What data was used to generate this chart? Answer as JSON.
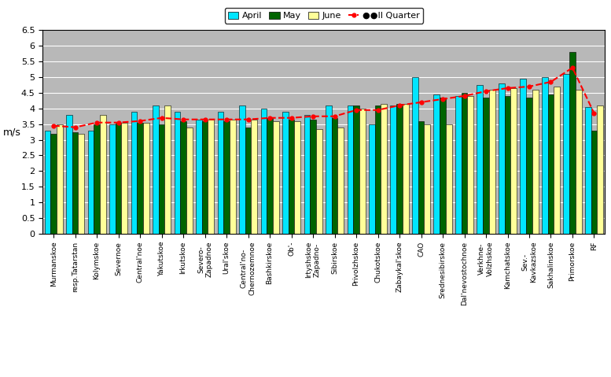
{
  "categories": [
    "Murmanskoe",
    "resp.Tatarstan",
    "Kolymskoe",
    "Severnoe",
    "Central'noe",
    "Yakutskoe",
    "Irkutskoe",
    "Severo-\nZapadnoe",
    "Ural'skoe",
    "Central'no-\nChernozemnoe",
    "Bashkirskoe",
    "Ob'-",
    "Irtyshskoe\nZapadno-",
    "Sibirskoe",
    "Privolzhskoe",
    "Chukotskoe",
    "Zabaykal'skoe",
    "CAO",
    "Srednesibirskoe",
    "Dal'nevostochnoe",
    "Verkhnе-\nVolzhskoe",
    "Kamchatskoe",
    "Sev.-\nKavkazskoe",
    "Sakhalinskoe",
    "Primorskoe",
    "RF"
  ],
  "april": [
    3.3,
    3.8,
    3.3,
    3.5,
    3.9,
    4.1,
    3.9,
    3.65,
    3.9,
    4.1,
    4.0,
    3.9,
    3.8,
    4.1,
    4.1,
    3.5,
    4.1,
    5.0,
    4.45,
    4.4,
    4.75,
    4.8,
    4.95,
    5.0,
    5.1,
    4.05
  ],
  "may": [
    3.2,
    3.25,
    3.5,
    3.55,
    3.55,
    3.5,
    3.6,
    3.6,
    3.6,
    3.4,
    3.7,
    3.65,
    3.65,
    3.7,
    4.1,
    4.1,
    4.15,
    3.6,
    4.35,
    4.5,
    4.35,
    4.4,
    4.35,
    4.45,
    5.8,
    3.3
  ],
  "june": [
    3.5,
    3.2,
    3.8,
    3.55,
    3.55,
    4.1,
    3.4,
    3.65,
    3.65,
    3.65,
    3.6,
    3.6,
    3.35,
    3.4,
    4.0,
    4.15,
    4.15,
    3.5,
    3.5,
    4.4,
    4.6,
    4.65,
    4.6,
    4.7,
    4.6,
    4.1
  ],
  "quarter": [
    3.45,
    3.4,
    3.55,
    3.55,
    3.6,
    3.7,
    3.65,
    3.65,
    3.65,
    3.65,
    3.7,
    3.7,
    3.75,
    3.75,
    3.95,
    3.95,
    4.1,
    4.2,
    4.3,
    4.4,
    4.55,
    4.65,
    4.7,
    4.85,
    5.3,
    3.85
  ],
  "color_april": "#00E5FF",
  "color_may": "#006400",
  "color_june": "#FFFF99",
  "color_quarter": "#FF0000",
  "ylabel": "m/s",
  "ylim": [
    0,
    6.5
  ],
  "yticks": [
    0.0,
    0.5,
    1.0,
    1.5,
    2.0,
    2.5,
    3.0,
    3.5,
    4.0,
    4.5,
    5.0,
    5.5,
    6.0,
    6.5
  ],
  "plot_bg_color": "#B8B8B8",
  "fig_bg_color": "#FFFFFF",
  "bar_width": 0.28
}
